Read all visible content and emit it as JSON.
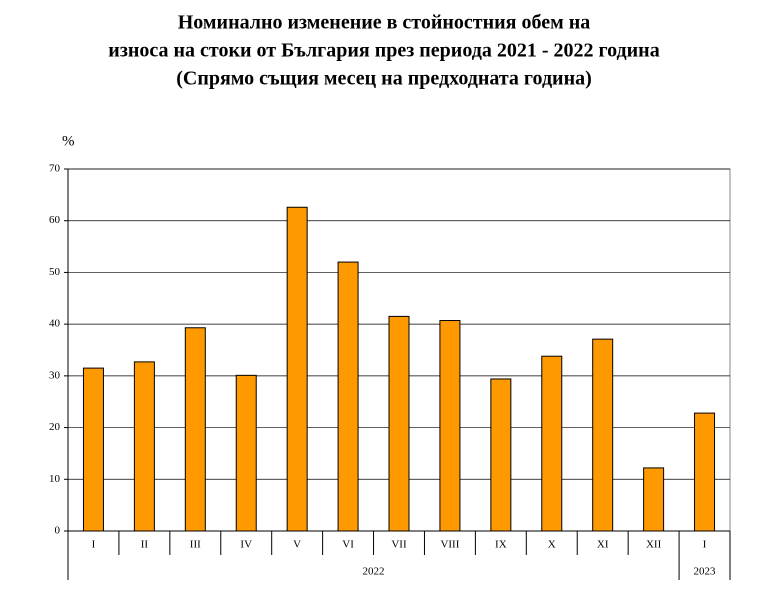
{
  "chart_data": {
    "type": "bar",
    "title": [
      "Номинално изменение в стойностния обем на",
      "износа на стоки от България през периода 2021 - 2022 година",
      "(Спрямо същия месец на предходната година)"
    ],
    "y_label": "%",
    "color": "#ff9900",
    "groups": [
      {
        "label": "2022",
        "categories": [
          "I",
          "II",
          "III",
          "IV",
          "V",
          "VI",
          "VII",
          "VIII",
          "IX",
          "X",
          "XI",
          "XII"
        ],
        "values": [
          31.5,
          32.7,
          39.3,
          30.1,
          62.6,
          52.0,
          41.5,
          40.7,
          29.4,
          33.8,
          37.1,
          12.2
        ]
      },
      {
        "label": "2023",
        "categories": [
          "I"
        ],
        "values": [
          22.8
        ]
      }
    ],
    "ylim": [
      0,
      70
    ],
    "yticks": [
      0,
      10,
      20,
      30,
      40,
      50,
      60,
      70
    ],
    "grid": true
  }
}
